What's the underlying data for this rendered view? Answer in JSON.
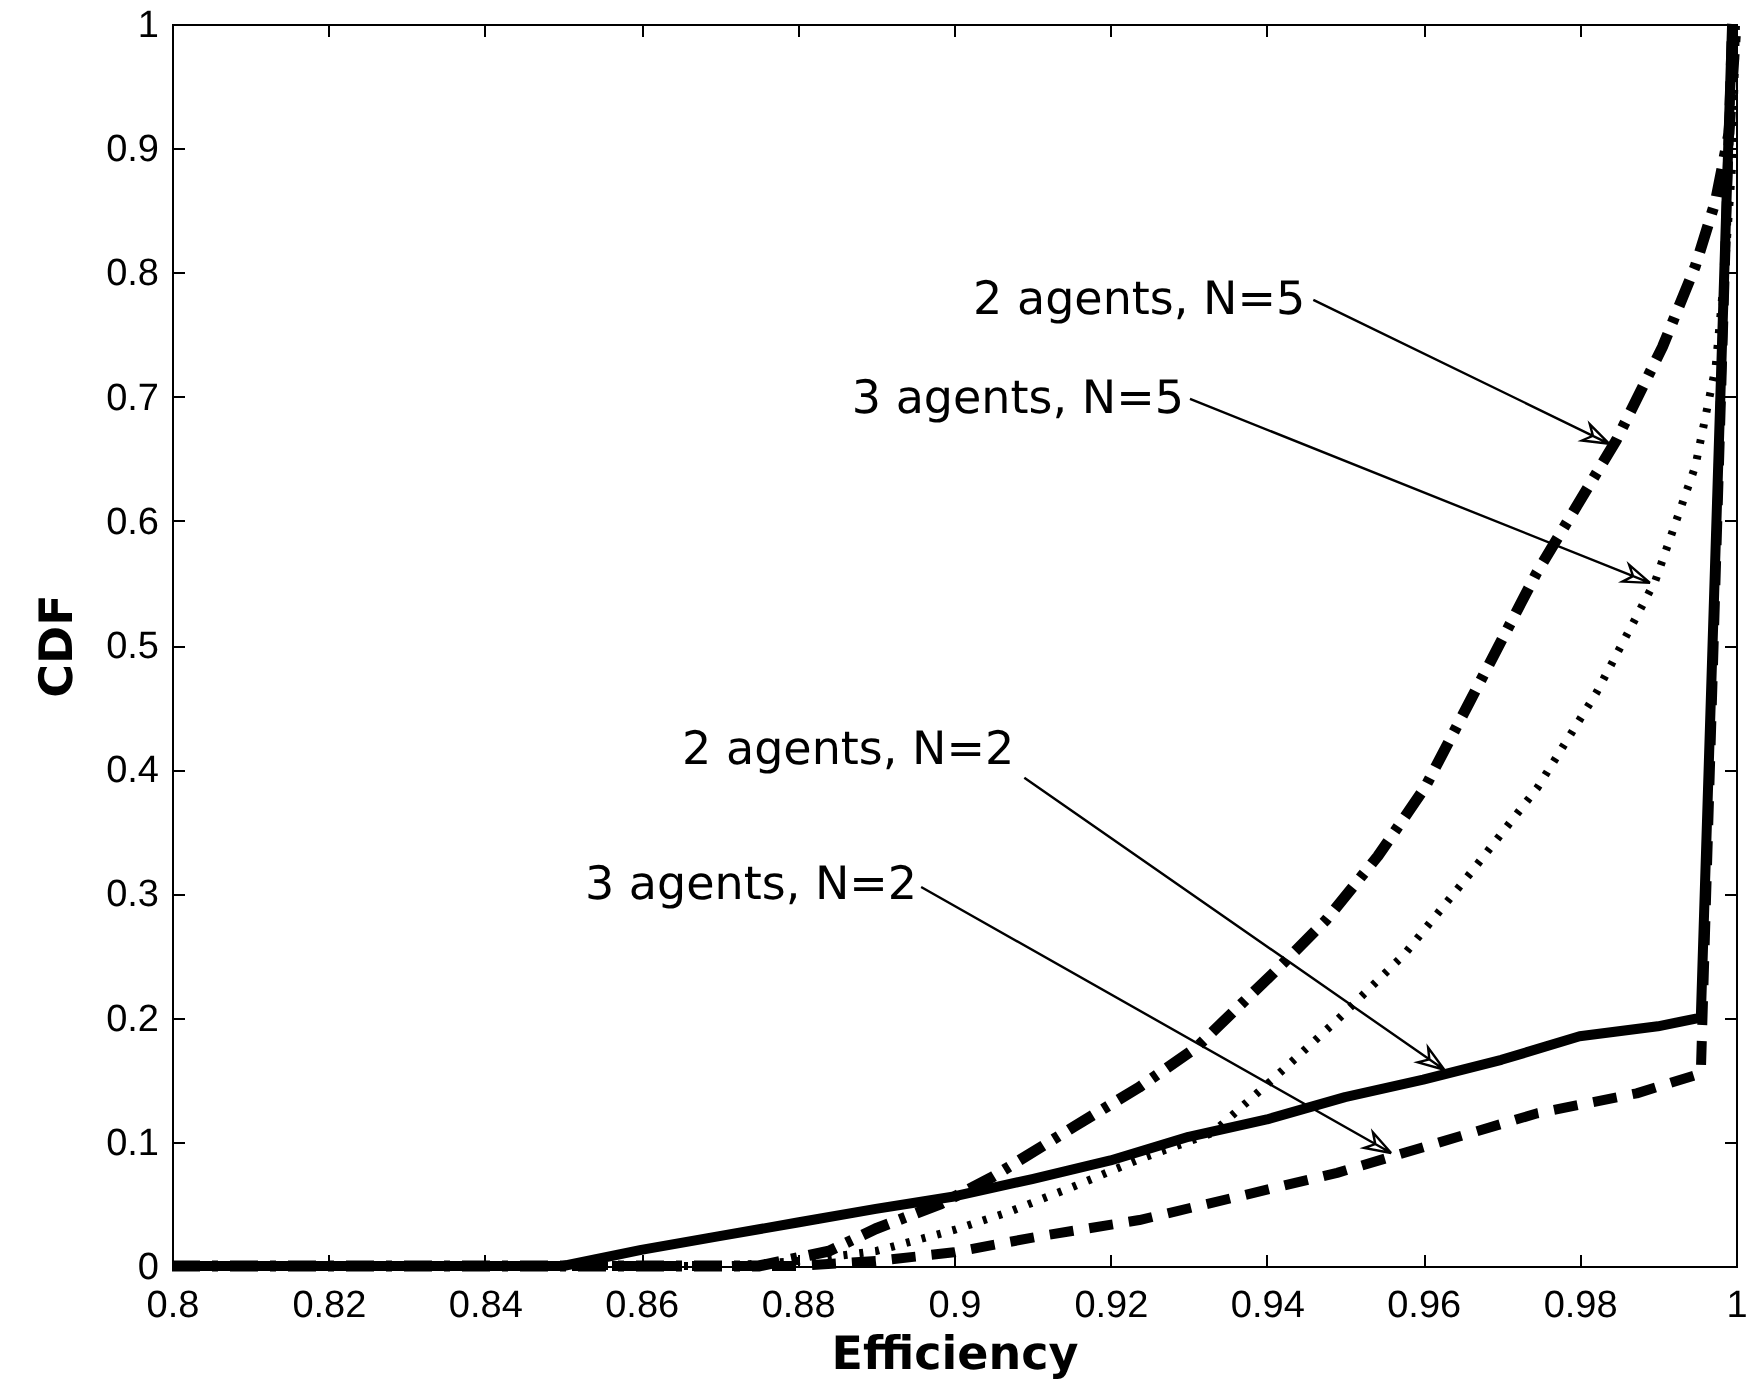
{
  "chart_data": {
    "type": "line",
    "xlabel": "Efficiency",
    "ylabel": "CDF",
    "xlim": [
      0.8,
      1
    ],
    "ylim": [
      0,
      1
    ],
    "xticks": [
      0.8,
      0.82,
      0.84,
      0.86,
      0.88,
      0.9,
      0.92,
      0.94,
      0.96,
      0.98,
      1
    ],
    "yticks": [
      0,
      0.1,
      0.2,
      0.3,
      0.4,
      0.5,
      0.6,
      0.7,
      0.8,
      0.9,
      1
    ],
    "grid": false,
    "marker": "none",
    "series": [
      {
        "color": "#000000",
        "line_style": "solid",
        "x": [
          0.8,
          0.85,
          0.86,
          0.87,
          0.88,
          0.89,
          0.9,
          0.91,
          0.92,
          0.93,
          0.94,
          0.95,
          0.96,
          0.97,
          0.98,
          0.99,
          0.9955,
          0.9995
        ],
        "values": [
          0,
          0,
          0.013,
          0.024,
          0.035,
          0.046,
          0.056,
          0.07,
          0.085,
          0.104,
          0.118,
          0.136,
          0.15,
          0.166,
          0.185,
          0.193,
          0.2,
          1
        ]
      },
      {
        "color": "#000000",
        "line_style": "dashdot",
        "x": [
          0.8,
          0.875,
          0.884,
          0.89,
          0.8983,
          0.905,
          0.9153,
          0.9237,
          0.931,
          0.9407,
          0.9475,
          0.9542,
          0.9602,
          0.966,
          0.9745,
          0.9847,
          0.9906,
          0.9948,
          0.9974,
          0.9991,
          1
        ],
        "values": [
          0,
          0,
          0.012,
          0.03,
          0.05,
          0.072,
          0.112,
          0.144,
          0.176,
          0.235,
          0.278,
          0.33,
          0.385,
          0.455,
          0.558,
          0.665,
          0.74,
          0.805,
          0.858,
          0.912,
          1
        ]
      },
      {
        "color": "#000000",
        "line_style": "dotted",
        "x": [
          0.8,
          0.87,
          0.88,
          0.89,
          0.9,
          0.9068,
          0.9153,
          0.9237,
          0.933,
          0.9407,
          0.949,
          0.9576,
          0.966,
          0.9746,
          0.9821,
          0.9897,
          0.9948,
          0.9974,
          0.9986,
          0.9995,
          1
        ],
        "values": [
          0,
          0,
          0.004,
          0.012,
          0.029,
          0.043,
          0.064,
          0.086,
          0.107,
          0.15,
          0.198,
          0.251,
          0.316,
          0.385,
          0.461,
          0.552,
          0.644,
          0.724,
          0.805,
          0.885,
          1
        ]
      },
      {
        "color": "#000000",
        "line_style": "dashed",
        "x": [
          0.8,
          0.88,
          0.89,
          0.9,
          0.911,
          0.9237,
          0.9364,
          0.949,
          0.9602,
          0.9746,
          0.9873,
          0.9955,
          0.9995
        ],
        "values": [
          0,
          0,
          0.004,
          0.011,
          0.024,
          0.037,
          0.056,
          0.075,
          0.096,
          0.123,
          0.139,
          0.155,
          1
        ]
      }
    ],
    "annotations": [
      {
        "text": "2 agents, N=5",
        "x": 0.9838,
        "y": 0.662
      },
      {
        "text": "3 agents, N=5",
        "x": 0.989,
        "y": 0.55
      },
      {
        "text": "2 agents, N=2",
        "x": 0.9627,
        "y": 0.158
      },
      {
        "text": "3 agents, N=2",
        "x": 0.9559,
        "y": 0.091
      }
    ]
  }
}
